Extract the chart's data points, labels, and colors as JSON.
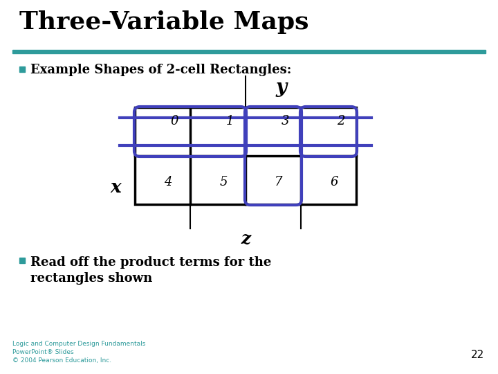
{
  "title": "Three-Variable Maps",
  "subtitle": "Example Shapes of 2-cell Rectangles:",
  "bullet2_line1": "Read off the product terms for the",
  "bullet2_line2": "rectangles shown",
  "teal_color": "#2E9B9B",
  "blue_rect_color": "#4040BB",
  "cell_labels_top": [
    "0",
    "1",
    "3",
    "2"
  ],
  "cell_labels_bot": [
    "4",
    "5",
    "7",
    "6"
  ],
  "x_label": "x",
  "y_label": "y",
  "z_label": "z",
  "footer": "Logic and Computer Design Fundamentals\nPowerPoint® Slides\n© 2004 Pearson Education, Inc.",
  "page_num": "22",
  "gx": 195,
  "gy": 155,
  "cw": 80,
  "ch": 70
}
